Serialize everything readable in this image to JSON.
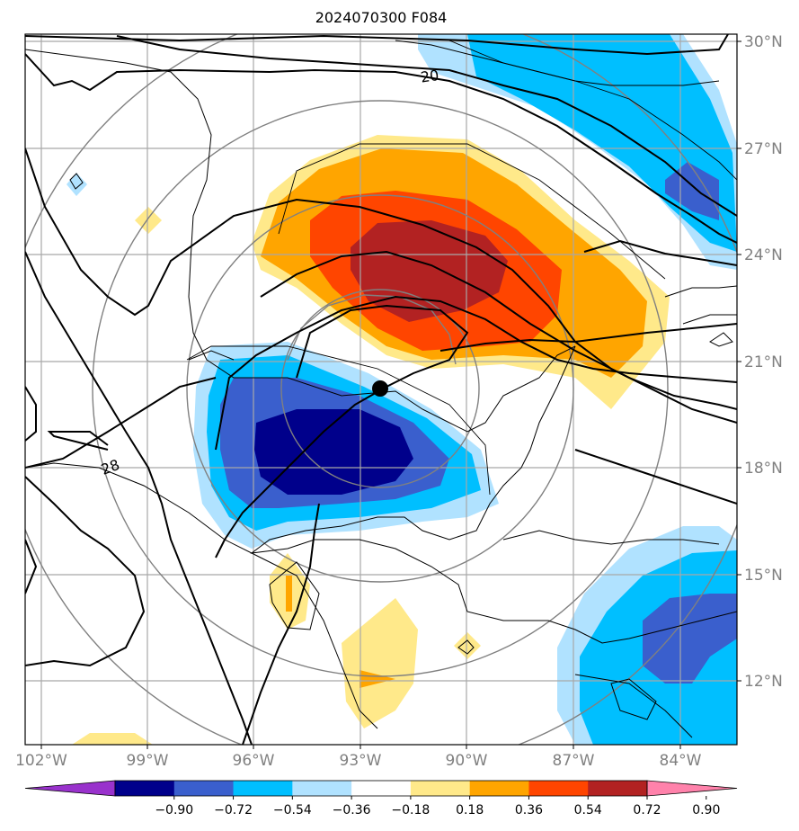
{
  "title": "2024070300 F084",
  "lat_labels": [
    "30°N",
    "27°N",
    "24°N",
    "21°N",
    "18°N",
    "15°N",
    "12°N"
  ],
  "lon_labels": [
    "102°W",
    "99°W",
    "96°W",
    "93°W",
    "90°W",
    "87°W",
    "84°W"
  ],
  "contour_labels": [
    "20",
    "28"
  ],
  "colorbar": {
    "colors": [
      "#9932cc",
      "#00008b",
      "#3a5fcd",
      "#00bfff",
      "#b0e2ff",
      "#ffffff",
      "#ffe98a",
      "#ffa500",
      "#ff4500",
      "#b22222",
      "#ff82ab"
    ],
    "tick_labels": [
      "−0.90",
      "−0.72",
      "−0.54",
      "−0.36",
      "−0.18",
      "0.18",
      "0.36",
      "0.54",
      "0.72",
      "0.90"
    ]
  },
  "marker": {
    "label": "storm-center",
    "lon": -92.5,
    "lat": 20.2
  }
}
